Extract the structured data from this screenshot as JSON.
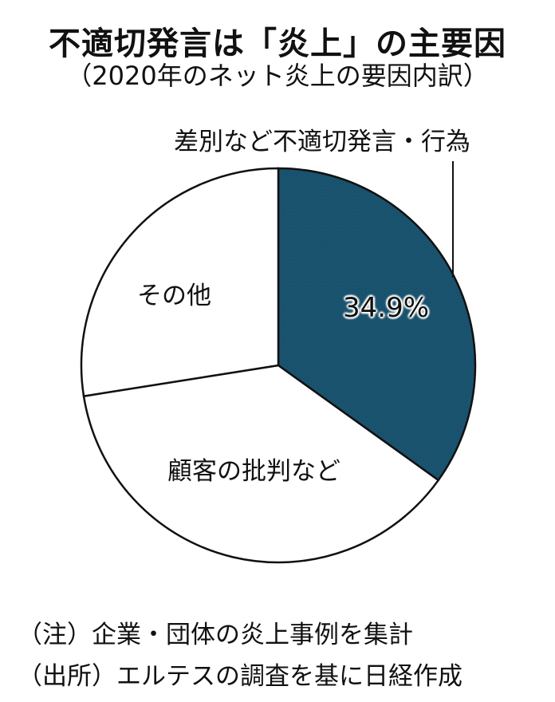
{
  "title": "不適切発言は「炎上」の主要因",
  "subtitle": "（2020年のネット炎上の要因内訳）",
  "chart_data": {
    "type": "pie",
    "title": "不適切発言は「炎上」の主要因",
    "subtitle": "（2020年のネット炎上の要因内訳）",
    "start": "12 o'clock, clockwise",
    "slices": [
      {
        "label": "差別など不適切発言・行為",
        "value": 34.9,
        "value_label": "34.9%",
        "color": "#1b5673"
      },
      {
        "label": "顧客の批判など",
        "value": 37.6,
        "color": "#ffffff"
      },
      {
        "label": "その他",
        "value": 27.5,
        "color": "#ffffff"
      }
    ]
  },
  "notes": [
    "（注）企業・団体の炎上事例を集計",
    "（出所）エルテスの調査を基に日経作成"
  ]
}
